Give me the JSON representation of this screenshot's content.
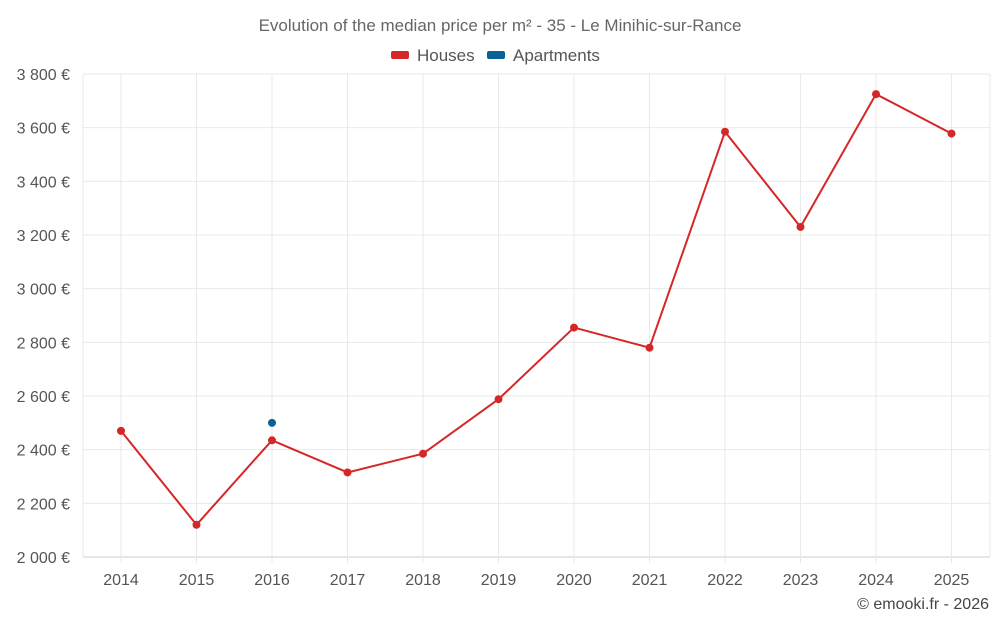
{
  "chart_data": {
    "type": "line",
    "title": "Evolution of the median price per m² - 35 - Le Minihic-sur-Rance",
    "categories": [
      "2014",
      "2015",
      "2016",
      "2017",
      "2018",
      "2019",
      "2020",
      "2021",
      "2022",
      "2023",
      "2024",
      "2025"
    ],
    "series": [
      {
        "name": "Houses",
        "color": "#d62728",
        "values": [
          2470,
          2120,
          2435,
          2315,
          2385,
          2588,
          2855,
          2780,
          3585,
          3230,
          3725,
          3578
        ]
      },
      {
        "name": "Apartments",
        "color": "#0b6397",
        "values": [
          null,
          null,
          2500,
          null,
          null,
          null,
          null,
          null,
          null,
          null,
          null,
          null
        ]
      }
    ],
    "ylim": [
      2000,
      3800
    ],
    "yticks": [
      2000,
      2200,
      2400,
      2600,
      2800,
      3000,
      3200,
      3400,
      3600,
      3800
    ],
    "ytick_labels": [
      "2 000 €",
      "2 200 €",
      "2 400 €",
      "2 600 €",
      "2 800 €",
      "3 000 €",
      "3 200 €",
      "3 400 €",
      "3 600 €",
      "3 800 €"
    ],
    "grid": true,
    "legend_position": "top-center",
    "xlabel": "",
    "ylabel": ""
  },
  "credit": "© emooki.fr - 2026"
}
